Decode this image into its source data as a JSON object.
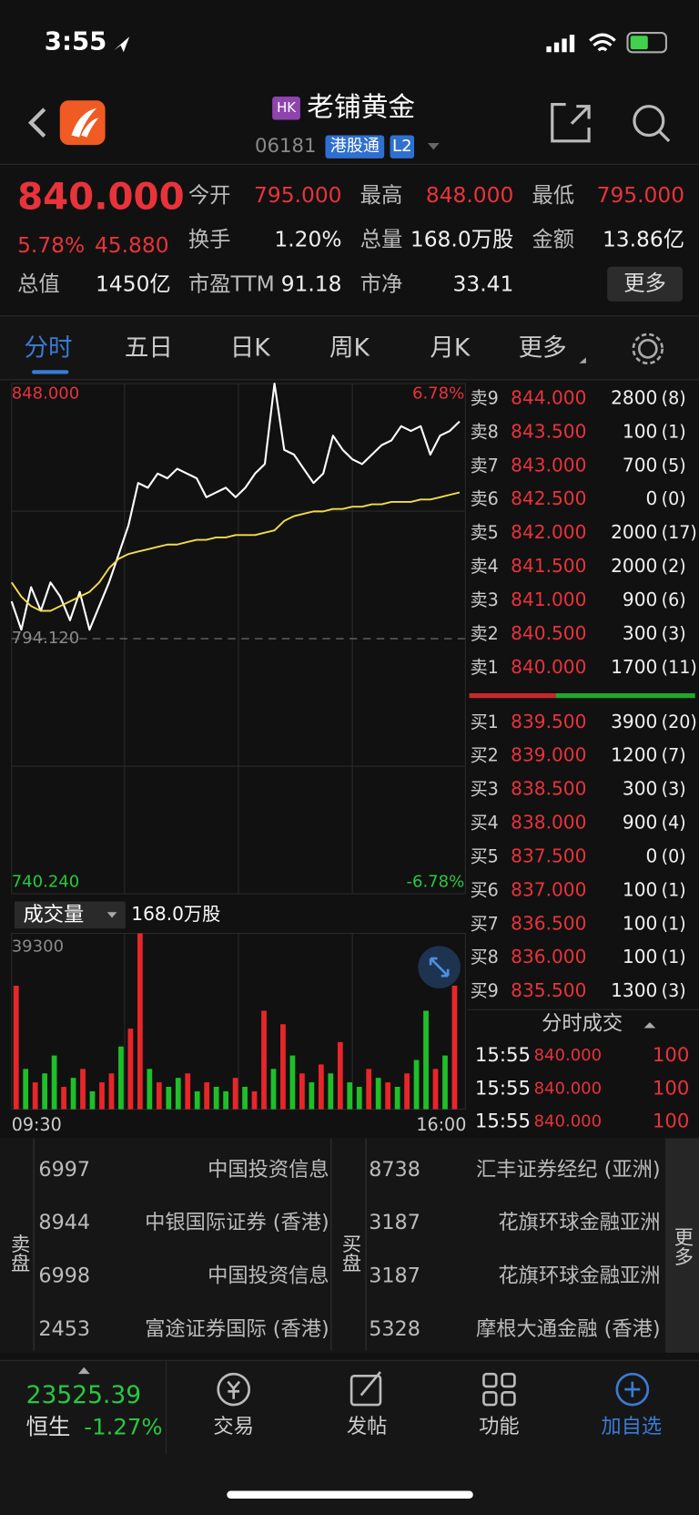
{
  "status": {
    "time": "3:55"
  },
  "header": {
    "badge": "HK",
    "name": "老铺黄金",
    "code": "06181",
    "tags": [
      "港股通",
      "L2"
    ]
  },
  "quote": {
    "price": "840.000",
    "change_pct": "5.78%",
    "change": "45.880",
    "more": "更多",
    "stats": [
      {
        "label": "今开",
        "value": "795.000"
      },
      {
        "label": "最高",
        "value": "848.000"
      },
      {
        "label": "最低",
        "value": "795.000"
      },
      {
        "label": "换手",
        "value": "1.20%"
      },
      {
        "label": "总量",
        "value": "168.0万股"
      },
      {
        "label": "金额",
        "value": "13.86亿"
      },
      {
        "label": "总值",
        "value": "1450亿"
      },
      {
        "label": "市盈TTM",
        "value": "91.18"
      },
      {
        "label": "市净",
        "value": "33.41"
      }
    ]
  },
  "tabs": [
    "分时",
    "五日",
    "日K",
    "周K",
    "月K",
    "更多"
  ],
  "chart_data": [
    {
      "type": "line",
      "ylim": [
        740.24,
        848
      ],
      "yticks": [
        {
          "value": 848,
          "label": "848.000"
        },
        {
          "value": 794.12,
          "label": "794.120"
        },
        {
          "value": 740.24,
          "label": "740.240"
        }
      ],
      "y2lim": [
        -6.78,
        6.78
      ],
      "y2ticks": [
        {
          "value": 6.78,
          "label": "6.78%"
        },
        {
          "value": -6.78,
          "label": "-6.78%"
        }
      ],
      "x_labels": [
        "09:30",
        "16:00"
      ],
      "series": [
        {
          "color": "#ffffff",
          "values": [
            802,
            796,
            805,
            800,
            806,
            803,
            798,
            804,
            796,
            801,
            806,
            812,
            818,
            827,
            826,
            829,
            828,
            830,
            829,
            828,
            824,
            825,
            826,
            824,
            826,
            829,
            831,
            848,
            834,
            833,
            830,
            827,
            829,
            837,
            834,
            832,
            831,
            833,
            835,
            836,
            839,
            838,
            839,
            833,
            837,
            838,
            840
          ]
        },
        {
          "color": "#f2dc4a",
          "values": [
            806,
            803,
            801,
            800,
            800,
            801,
            802,
            803,
            804,
            806,
            809,
            811,
            812,
            812.5,
            813,
            813.5,
            814,
            814,
            814.5,
            815,
            815,
            815.5,
            815.5,
            816,
            816,
            816,
            816.5,
            817,
            819,
            820,
            820.5,
            821,
            821,
            821.5,
            821.5,
            822,
            822,
            822.5,
            822.5,
            823,
            823,
            823,
            823.5,
            823.5,
            824,
            824.5,
            825
          ]
        }
      ]
    },
    {
      "type": "bar",
      "title": "成交量",
      "total": "168.0万股",
      "ylim": [
        0,
        39300
      ],
      "yticks": [
        39300
      ],
      "values": [
        27600,
        9000,
        6000,
        8000,
        12000,
        5000,
        7000,
        9000,
        4000,
        6000,
        8000,
        14000,
        18000,
        39300,
        9000,
        6000,
        5000,
        7000,
        8000,
        4000,
        6000,
        5000,
        4000,
        7000,
        5000,
        4000,
        22000,
        9000,
        19000,
        12000,
        8000,
        6000,
        10000,
        8000,
        15000,
        6000,
        5000,
        9000,
        7000,
        6000,
        5000,
        8000,
        11000,
        22000,
        9000,
        12000,
        27600
      ],
      "colors": [
        "#e8262a",
        "#1fbf2a",
        "#e8262a",
        "#1fbf2a",
        "#1fbf2a",
        "#e8262a",
        "#1fbf2a",
        "#e8262a",
        "#1fbf2a",
        "#e8262a",
        "#e8262a",
        "#1fbf2a",
        "#e8262a",
        "#e8262a",
        "#1fbf2a",
        "#e8262a",
        "#1fbf2a",
        "#1fbf2a",
        "#e8262a",
        "#1fbf2a",
        "#e8262a",
        "#1fbf2a",
        "#1fbf2a",
        "#e8262a",
        "#1fbf2a",
        "#e8262a",
        "#e8262a",
        "#1fbf2a",
        "#e8262a",
        "#1fbf2a",
        "#e8262a",
        "#1fbf2a",
        "#e8262a",
        "#1fbf2a",
        "#e8262a",
        "#1fbf2a",
        "#1fbf2a",
        "#e8262a",
        "#1fbf2a",
        "#e8262a",
        "#1fbf2a",
        "#e8262a",
        "#1fbf2a",
        "#1fbf2a",
        "#e8262a",
        "#1fbf2a",
        "#e8262a"
      ]
    }
  ],
  "orderbook": {
    "asks": [
      {
        "label": "卖9",
        "price": "844.000",
        "volume": "2800",
        "count": "(8)"
      },
      {
        "label": "卖8",
        "price": "843.500",
        "volume": "100",
        "count": "(1)"
      },
      {
        "label": "卖7",
        "price": "843.000",
        "volume": "700",
        "count": "(5)"
      },
      {
        "label": "卖6",
        "price": "842.500",
        "volume": "0",
        "count": "(0)"
      },
      {
        "label": "卖5",
        "price": "842.000",
        "volume": "2000",
        "count": "(17)"
      },
      {
        "label": "卖4",
        "price": "841.500",
        "volume": "2000",
        "count": "(2)"
      },
      {
        "label": "卖3",
        "price": "841.000",
        "volume": "900",
        "count": "(6)"
      },
      {
        "label": "卖2",
        "price": "840.500",
        "volume": "300",
        "count": "(3)"
      },
      {
        "label": "卖1",
        "price": "840.000",
        "volume": "1700",
        "count": "(11)"
      }
    ],
    "bids": [
      {
        "label": "买1",
        "price": "839.500",
        "volume": "3900",
        "count": "(20)"
      },
      {
        "label": "买2",
        "price": "839.000",
        "volume": "1200",
        "count": "(7)"
      },
      {
        "label": "买3",
        "price": "838.500",
        "volume": "300",
        "count": "(3)"
      },
      {
        "label": "买4",
        "price": "838.000",
        "volume": "900",
        "count": "(4)"
      },
      {
        "label": "买5",
        "price": "837.500",
        "volume": "0",
        "count": "(0)"
      },
      {
        "label": "买6",
        "price": "837.000",
        "volume": "100",
        "count": "(1)"
      },
      {
        "label": "买7",
        "price": "836.500",
        "volume": "100",
        "count": "(1)"
      },
      {
        "label": "买8",
        "price": "836.000",
        "volume": "100",
        "count": "(1)"
      },
      {
        "label": "买9",
        "price": "835.500",
        "volume": "1300",
        "count": "(3)"
      }
    ]
  },
  "trades": {
    "title": "分时成交",
    "rows": [
      {
        "time": "15:55",
        "price": "840.000",
        "volume": "100"
      },
      {
        "time": "15:55",
        "price": "840.000",
        "volume": "100"
      },
      {
        "time": "15:55",
        "price": "840.000",
        "volume": "100"
      }
    ]
  },
  "brokers": {
    "sell_label": "卖盘",
    "buy_label": "买盘",
    "more": "更多",
    "sell": [
      {
        "code": "6997",
        "name": "中国投资信息"
      },
      {
        "code": "8944",
        "name": "中银国际证券 (香港)"
      },
      {
        "code": "6998",
        "name": "中国投资信息"
      },
      {
        "code": "2453",
        "name": "富途证券国际 (香港)"
      }
    ],
    "buy": [
      {
        "code": "8738",
        "name": "汇丰证券经纪 (亚洲)"
      },
      {
        "code": "3187",
        "name": "花旗环球金融亚洲"
      },
      {
        "code": "3187",
        "name": "花旗环球金融亚洲"
      },
      {
        "code": "5328",
        "name": "摩根大通金融 (香港)"
      }
    ]
  },
  "bottom": {
    "index_value": "23525.39",
    "index_name": "恒生",
    "index_change": "-1.27%",
    "nav": [
      "交易",
      "发帖",
      "功能",
      "加自选"
    ]
  }
}
